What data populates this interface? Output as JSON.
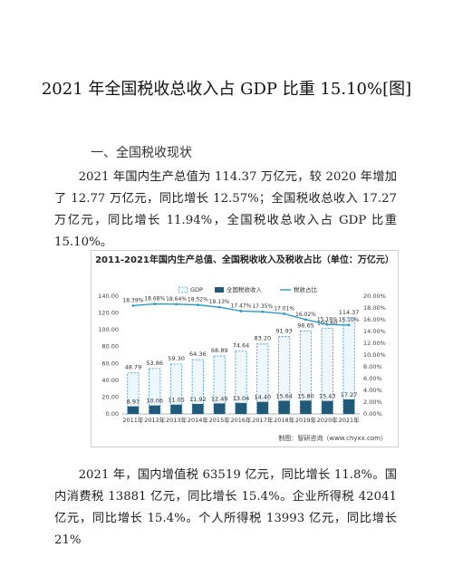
{
  "page": {
    "title": "2021 年全国税收总收入占 GDP 比重 15.10%[图]",
    "section_heading": "一、全国税收现状",
    "paragraph1": "2021 年国内生产总值为 114.37 万亿元，较 2020 年增加了 12.77 万亿元，同比增长 12.57%；全国税收总收入 17.27 万亿元，同比增长 11.94%，全国税收总收入占 GDP 比重 15.10%。",
    "paragraph2": "2021 年，国内增值税 63519 亿元，同比增长 11.8%。国内消费税 13881 亿元，同比增长 15.4%。企业所得税 42041 亿元，同比增长 15.4%。个人所得税 13993 亿元，同比增长 21%",
    "source": "制图：智研咨询（www.chyxx.com）"
  },
  "chart_data": {
    "type": "bar",
    "title": "2011-2021年国内生产总值、全国税收收入及税收占比（单位：万亿元）",
    "categories": [
      "2011年",
      "2012年",
      "2013年",
      "2014年",
      "2015年",
      "2016年",
      "2017年",
      "2018年",
      "2019年",
      "2020年",
      "2021年"
    ],
    "series": [
      {
        "name": "GDP",
        "type": "bar",
        "values": [
          48.79,
          53.86,
          59.3,
          64.36,
          68.89,
          74.64,
          83.2,
          91.93,
          98.65,
          101.6,
          114.37
        ],
        "color": "#4a9bd1"
      },
      {
        "name": "全国税收收入",
        "type": "bar",
        "values": [
          8.97,
          10.06,
          11.05,
          11.92,
          12.49,
          13.04,
          14.4,
          15.64,
          15.8,
          15.43,
          17.27
        ],
        "color": "#1f5a7a"
      },
      {
        "name": "税收占比",
        "type": "line",
        "axis": "right",
        "values": [
          18.39,
          18.68,
          18.64,
          18.52,
          18.13,
          17.47,
          17.35,
          17.01,
          16.02,
          15.19,
          15.1
        ],
        "color": "#2a9ac8"
      }
    ],
    "y_left": {
      "ticks": [
        "0.00",
        "20.00",
        "40.00",
        "60.00",
        "80.00",
        "100.00",
        "120.00",
        "140.00"
      ],
      "lim": [
        0,
        140
      ]
    },
    "y_right": {
      "ticks": [
        "0.00%",
        "2.00%",
        "4.00%",
        "6.00%",
        "8.00%",
        "10.00%",
        "12.00%",
        "14.00%",
        "16.00%",
        "18.00%",
        "20.00%"
      ],
      "lim": [
        0,
        20
      ]
    },
    "legend_position": "top-center",
    "grid": false
  }
}
